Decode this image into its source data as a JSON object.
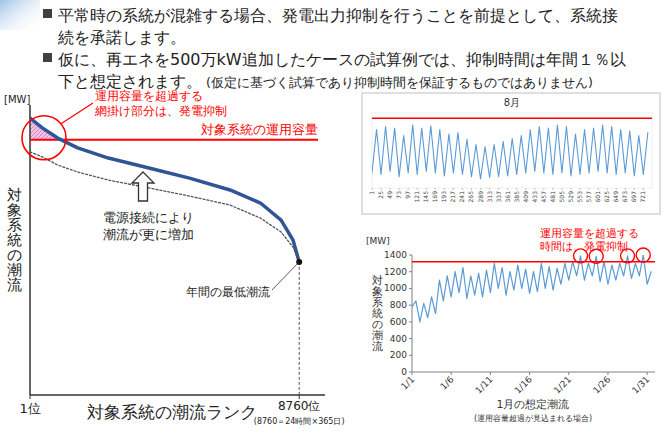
{
  "bullets": [
    {
      "lines": [
        "平常時の系統が混雑する場合、発電出力抑制を行うことを前提として、系統接",
        "続を承諾します。"
      ]
    },
    {
      "lines": [
        "仮に、再エネを500万kW追加したケースの試算例では、抑制時間は年間１％以",
        "下と想定されます。"
      ],
      "note": "(仮定に基づく試算であり抑制時間を保証するものではありません)"
    }
  ],
  "chart_data": [
    {
      "type": "line",
      "y_unit": "[MW]",
      "ylabel": "対象系統の潮流",
      "xlabel": "対象系統の潮流ランク",
      "xlabel_note": "(8760＝24時間×365日)",
      "x": [
        1,
        400,
        900,
        1550,
        2550,
        3870,
        5190,
        6510,
        7500,
        8170,
        8560,
        8760
      ],
      "xlim": [
        0,
        9600
      ],
      "xticks": [
        {
          "value": 1,
          "label": "1位"
        },
        {
          "value": 8760,
          "label": "8760位"
        }
      ],
      "ylim": [
        0,
        100
      ],
      "tick_labels": "x",
      "series": [
        {
          "color": "#2f5597",
          "line_style": "solid",
          "values": [
            95.5,
            92.1,
            88.6,
            85.2,
            81.7,
            78.3,
            74.8,
            70.7,
            66.2,
            60.3,
            53.4,
            45.9
          ]
        },
        {
          "color": "#555555",
          "line_style": "dotted",
          "values": [
            83.8,
            82.1,
            79.3,
            76.9,
            74.1,
            71.4,
            68.6,
            65.5,
            61.0,
            56.2,
            51.0,
            45.9
          ]
        }
      ],
      "capacity": {
        "value": 88,
        "label": "対象系統の運用容量",
        "color": "#ff0000"
      },
      "annotations": [
        {
          "lines": [
            "運用容量を超過する",
            "網掛け部分は、発電抑制"
          ],
          "color": "#ff0000"
        },
        {
          "lines": [
            "電源接続により",
            "潮流が更に増加"
          ]
        },
        {
          "lines": [
            "年間の最低潮流"
          ]
        }
      ]
    },
    {
      "type": "line",
      "title": "8月",
      "x": [
        1,
        13,
        25,
        37,
        49,
        61,
        73,
        85,
        97,
        109,
        121,
        133,
        145,
        157,
        169,
        181,
        193,
        205,
        217,
        229,
        241,
        253,
        265,
        277,
        289,
        301,
        313,
        325,
        337,
        349,
        361,
        373,
        385,
        397,
        409,
        421,
        433,
        445,
        457,
        469,
        481,
        493,
        505,
        517,
        529,
        541,
        553,
        565,
        577,
        589,
        601,
        613,
        625,
        637,
        649,
        661,
        673,
        685,
        697,
        709,
        721,
        733
      ],
      "xlim": [
        1,
        744
      ],
      "xticks": [
        1,
        25,
        49,
        73,
        97,
        121,
        145,
        169,
        193,
        217,
        241,
        265,
        289,
        313,
        337,
        361,
        385,
        409,
        433,
        457,
        481,
        505,
        529,
        553,
        577,
        601,
        625,
        649,
        673,
        697,
        721
      ],
      "ylim": [
        0,
        100
      ],
      "tick_labels": "x",
      "series": [
        {
          "color": "#5b9bd5",
          "values": [
            20,
            78,
            18,
            82,
            22,
            80,
            15,
            70,
            20,
            84,
            18,
            80,
            22,
            83,
            20,
            78,
            16,
            72,
            20,
            74,
            18,
            65,
            15,
            58,
            12,
            55,
            14,
            58,
            15,
            62,
            16,
            66,
            18,
            70,
            20,
            78,
            22,
            82,
            20,
            80,
            18,
            84,
            20,
            82,
            16,
            72,
            18,
            78,
            20,
            80,
            22,
            84,
            20,
            82,
            18,
            78,
            20,
            76,
            16,
            70,
            18,
            74
          ]
        }
      ],
      "capacity": {
        "value": 93,
        "color": "#ff0000"
      }
    },
    {
      "type": "line",
      "y_unit": "[MW]",
      "ylabel": "対象系統の潮流",
      "xlabel": "1月の想定潮流",
      "xlabel_note": "(運用容量超過が見込まれる場合)",
      "x": [
        1,
        1.5,
        2,
        2.5,
        3,
        3.5,
        4,
        4.5,
        5,
        5.5,
        6,
        6.5,
        7,
        7.5,
        8,
        8.5,
        9,
        9.5,
        10,
        10.5,
        11,
        11.5,
        12,
        12.5,
        13,
        13.5,
        14,
        14.5,
        15,
        15.5,
        16,
        16.5,
        17,
        17.5,
        18,
        18.5,
        19,
        19.5,
        20,
        20.5,
        21,
        21.5,
        22,
        22.5,
        23,
        23.5,
        24,
        24.5,
        25,
        25.5,
        26,
        26.5,
        27,
        27.5,
        28,
        28.5,
        29,
        29.5,
        30,
        30.5,
        31,
        31.5
      ],
      "xlim": [
        1,
        32
      ],
      "xticks": [
        {
          "value": 1,
          "label": "1/1"
        },
        {
          "value": 6,
          "label": "1/6"
        },
        {
          "value": 11,
          "label": "1/11"
        },
        {
          "value": 16,
          "label": "1/16"
        },
        {
          "value": 21,
          "label": "1/21"
        },
        {
          "value": 26,
          "label": "1/26"
        },
        {
          "value": 31,
          "label": "1/31"
        }
      ],
      "ylim": [
        0,
        1400
      ],
      "yticks": [
        0,
        200,
        400,
        600,
        800,
        1000,
        1200,
        1400
      ],
      "series": [
        {
          "color": "#5b9bd5",
          "values": [
            780,
            850,
            600,
            820,
            650,
            900,
            700,
            1100,
            850,
            1150,
            900,
            1200,
            950,
            1250,
            880,
            1150,
            920,
            1180,
            900,
            1220,
            950,
            1300,
            1000,
            1250,
            920,
            1200,
            980,
            1280,
            1000,
            1230,
            940,
            1200,
            960,
            1300,
            1000,
            1260,
            980,
            1240,
            1050,
            1300,
            1100,
            1320,
            1150,
            1390,
            1100,
            1300,
            1150,
            1385,
            1080,
            1320,
            1050,
            1280,
            1100,
            1300,
            1150,
            1390,
            1120,
            1300,
            1150,
            1400,
            1050,
            1200
          ]
        }
      ],
      "capacity": {
        "value": 1320,
        "color": "#ff0000"
      },
      "annotations": [
        {
          "lines": [
            "運用容量を超過する",
            "時間は、発電抑制"
          ],
          "color": "#ff0000"
        }
      ]
    }
  ]
}
